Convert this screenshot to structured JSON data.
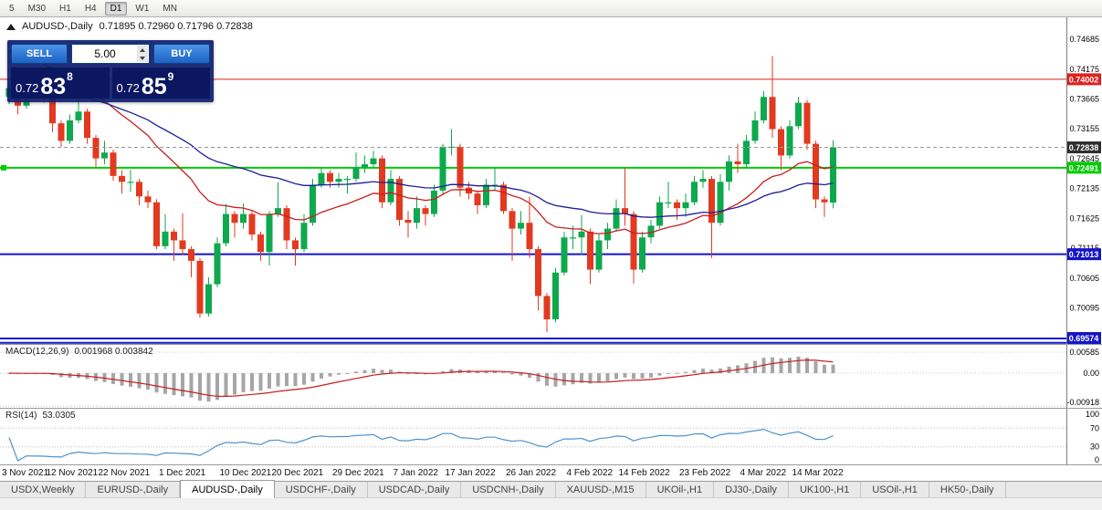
{
  "toolbar": {
    "timeframes": [
      "5",
      "M30",
      "H1",
      "H4",
      "D1",
      "W1",
      "MN"
    ],
    "active": "D1"
  },
  "chart": {
    "symbol_label": "AUDUSD-,Daily",
    "ohlc_text": "0.71895 0.72960 0.71796 0.72838",
    "colors": {
      "up": "#0ea94e",
      "down": "#e23a20",
      "bg": "#ffffff"
    },
    "price_axis": {
      "top_price": 0.7506,
      "bottom_price": 0.6948,
      "labels": [
        "0.74685",
        "0.74175",
        "0.73665",
        "0.73155",
        "0.72645",
        "0.72135",
        "0.71625",
        "0.71115",
        "0.70605",
        "0.70095",
        "0.69585"
      ]
    },
    "mas": [
      {
        "period": 20,
        "color": "#c81e1e",
        "seed": 0.7455
      },
      {
        "period": 45,
        "color": "#1e1e96",
        "seed": 0.738
      }
    ],
    "hlines": [
      {
        "price": 0.74002,
        "color": "#e02020",
        "width": 1,
        "tag": "0.74002"
      },
      {
        "price": 0.72491,
        "color": "#00cc00",
        "width": 2,
        "tag": "0.72491"
      },
      {
        "price": 0.71013,
        "color": "#1414c8",
        "width": 2,
        "tag": "0.71013"
      },
      {
        "price": 0.69574,
        "color": "#1414c8",
        "width": 2,
        "tag": "0.69574"
      },
      {
        "price": 0.695,
        "color": "#1414c8",
        "width": 2,
        "tag": null
      }
    ],
    "bid": {
      "price": 0.72838,
      "tag": "0.72838",
      "color": "#2e2e2e"
    },
    "candles": [
      [
        0.737,
        0.7395,
        0.7358,
        0.7385
      ],
      [
        0.7385,
        0.739,
        0.734,
        0.7355
      ],
      [
        0.7355,
        0.7408,
        0.735,
        0.74
      ],
      [
        0.74,
        0.7405,
        0.7375,
        0.739
      ],
      [
        0.739,
        0.7398,
        0.736,
        0.738
      ],
      [
        0.738,
        0.7385,
        0.731,
        0.7325
      ],
      [
        0.7325,
        0.733,
        0.7285,
        0.7295
      ],
      [
        0.7295,
        0.734,
        0.729,
        0.733
      ],
      [
        0.733,
        0.737,
        0.7325,
        0.7345
      ],
      [
        0.7345,
        0.735,
        0.729,
        0.73
      ],
      [
        0.73,
        0.7305,
        0.725,
        0.7265
      ],
      [
        0.7265,
        0.7295,
        0.7255,
        0.7275
      ],
      [
        0.7275,
        0.728,
        0.7227,
        0.7235
      ],
      [
        0.7235,
        0.7245,
        0.7205,
        0.7225
      ],
      [
        0.7225,
        0.7245,
        0.7208,
        0.7225
      ],
      [
        0.7225,
        0.723,
        0.7185,
        0.72
      ],
      [
        0.72,
        0.721,
        0.718,
        0.719
      ],
      [
        0.719,
        0.7195,
        0.711,
        0.7115
      ],
      [
        0.7115,
        0.717,
        0.711,
        0.714
      ],
      [
        0.714,
        0.7145,
        0.709,
        0.7125
      ],
      [
        0.7125,
        0.7171,
        0.71,
        0.711
      ],
      [
        0.711,
        0.7115,
        0.7062,
        0.709
      ],
      [
        0.709,
        0.7095,
        0.6993,
        0.7
      ],
      [
        0.7,
        0.7062,
        0.6995,
        0.705
      ],
      [
        0.705,
        0.713,
        0.7045,
        0.712
      ],
      [
        0.712,
        0.7187,
        0.7115,
        0.717
      ],
      [
        0.717,
        0.7175,
        0.713,
        0.7155
      ],
      [
        0.7155,
        0.7188,
        0.7145,
        0.717
      ],
      [
        0.717,
        0.7175,
        0.7125,
        0.7135
      ],
      [
        0.7135,
        0.714,
        0.709,
        0.7105
      ],
      [
        0.7105,
        0.7175,
        0.7082,
        0.717
      ],
      [
        0.717,
        0.7224,
        0.7165,
        0.718
      ],
      [
        0.718,
        0.7185,
        0.711,
        0.7125
      ],
      [
        0.7125,
        0.713,
        0.7082,
        0.711
      ],
      [
        0.711,
        0.717,
        0.7105,
        0.7155
      ],
      [
        0.7155,
        0.723,
        0.715,
        0.722
      ],
      [
        0.722,
        0.725,
        0.7215,
        0.724
      ],
      [
        0.724,
        0.7245,
        0.7215,
        0.7225
      ],
      [
        0.7225,
        0.724,
        0.7215,
        0.723
      ],
      [
        0.723,
        0.7235,
        0.7205,
        0.723
      ],
      [
        0.723,
        0.7275,
        0.7225,
        0.725
      ],
      [
        0.725,
        0.727,
        0.724,
        0.7255
      ],
      [
        0.7255,
        0.7278,
        0.725,
        0.7265
      ],
      [
        0.7265,
        0.727,
        0.718,
        0.719
      ],
      [
        0.719,
        0.7245,
        0.7185,
        0.723
      ],
      [
        0.723,
        0.7235,
        0.715,
        0.716
      ],
      [
        0.716,
        0.7175,
        0.713,
        0.7155
      ],
      [
        0.7155,
        0.72,
        0.7145,
        0.718
      ],
      [
        0.718,
        0.7185,
        0.715,
        0.717
      ],
      [
        0.717,
        0.722,
        0.7165,
        0.721
      ],
      [
        0.721,
        0.729,
        0.7205,
        0.7285
      ],
      [
        0.7285,
        0.7315,
        0.727,
        0.7285
      ],
      [
        0.7285,
        0.729,
        0.72,
        0.7215
      ],
      [
        0.7215,
        0.7225,
        0.7195,
        0.7205
      ],
      [
        0.7205,
        0.721,
        0.717,
        0.7185
      ],
      [
        0.7185,
        0.723,
        0.718,
        0.722
      ],
      [
        0.722,
        0.725,
        0.721,
        0.722
      ],
      [
        0.722,
        0.7225,
        0.717,
        0.7175
      ],
      [
        0.7175,
        0.718,
        0.709,
        0.7145
      ],
      [
        0.7145,
        0.7175,
        0.7135,
        0.7155
      ],
      [
        0.7155,
        0.72,
        0.7095,
        0.711
      ],
      [
        0.711,
        0.7115,
        0.7005,
        0.703
      ],
      [
        0.703,
        0.7035,
        0.6968,
        0.699
      ],
      [
        0.699,
        0.7078,
        0.6985,
        0.707
      ],
      [
        0.707,
        0.714,
        0.7065,
        0.713
      ],
      [
        0.713,
        0.715,
        0.711,
        0.713
      ],
      [
        0.713,
        0.7168,
        0.71,
        0.714
      ],
      [
        0.714,
        0.7145,
        0.705,
        0.7075
      ],
      [
        0.7075,
        0.7135,
        0.707,
        0.7125
      ],
      [
        0.7125,
        0.7155,
        0.711,
        0.7145
      ],
      [
        0.7145,
        0.7195,
        0.714,
        0.718
      ],
      [
        0.718,
        0.7249,
        0.715,
        0.717
      ],
      [
        0.717,
        0.7175,
        0.7051,
        0.7075
      ],
      [
        0.7075,
        0.714,
        0.707,
        0.713
      ],
      [
        0.713,
        0.716,
        0.712,
        0.715
      ],
      [
        0.715,
        0.72,
        0.7145,
        0.719
      ],
      [
        0.719,
        0.7225,
        0.718,
        0.719
      ],
      [
        0.719,
        0.7195,
        0.716,
        0.718
      ],
      [
        0.718,
        0.7205,
        0.7165,
        0.719
      ],
      [
        0.719,
        0.7235,
        0.7185,
        0.7225
      ],
      [
        0.7225,
        0.7245,
        0.7215,
        0.723
      ],
      [
        0.723,
        0.7235,
        0.7095,
        0.7155
      ],
      [
        0.7155,
        0.7238,
        0.715,
        0.7225
      ],
      [
        0.7225,
        0.727,
        0.721,
        0.726
      ],
      [
        0.726,
        0.729,
        0.724,
        0.7255
      ],
      [
        0.7255,
        0.7305,
        0.725,
        0.7295
      ],
      [
        0.7295,
        0.7345,
        0.729,
        0.733
      ],
      [
        0.733,
        0.738,
        0.7325,
        0.737
      ],
      [
        0.737,
        0.744,
        0.73,
        0.7315
      ],
      [
        0.7315,
        0.732,
        0.7245,
        0.727
      ],
      [
        0.727,
        0.733,
        0.7265,
        0.732
      ],
      [
        0.732,
        0.737,
        0.7315,
        0.736
      ],
      [
        0.736,
        0.7365,
        0.728,
        0.729
      ],
      [
        0.729,
        0.7295,
        0.718,
        0.7195
      ],
      [
        0.7195,
        0.72,
        0.7165,
        0.719
      ],
      [
        0.71895,
        0.7296,
        0.71796,
        0.72838
      ]
    ],
    "dates": [
      {
        "label": "3 Nov 2021",
        "index": 0
      },
      {
        "label": "12 Nov 2021",
        "index": 7
      },
      {
        "label": "22 Nov 2021",
        "index": 13
      },
      {
        "label": "1 Dec 2021",
        "index": 20
      },
      {
        "label": "10 Dec 2021",
        "index": 27
      },
      {
        "label": "20 Dec 2021",
        "index": 33
      },
      {
        "label": "29 Dec 2021",
        "index": 40
      },
      {
        "label": "7 Jan 2022",
        "index": 47
      },
      {
        "label": "17 Jan 2022",
        "index": 53
      },
      {
        "label": "26 Jan 2022",
        "index": 60
      },
      {
        "label": "4 Feb 2022",
        "index": 67
      },
      {
        "label": "14 Feb 2022",
        "index": 73
      },
      {
        "label": "23 Feb 2022",
        "index": 80
      },
      {
        "label": "4 Mar 2022",
        "index": 87
      },
      {
        "label": "14 Mar 2022",
        "index": 93
      }
    ]
  },
  "trade_panel": {
    "sell_label": "SELL",
    "buy_label": "BUY",
    "lot": "5.00",
    "sell_price": {
      "prefix": "0.72",
      "big": "83",
      "sup": "8"
    },
    "buy_price": {
      "prefix": "0.72",
      "big": "85",
      "sup": "9"
    }
  },
  "macd": {
    "label": "MACD(12,26,9)",
    "values_text": "0.001968 0.003842",
    "params": {
      "fast": 12,
      "slow": 26,
      "signal": 9
    },
    "colors": {
      "hist": "#a6a6a6",
      "signal": "#c81e1e"
    },
    "axis": [
      {
        "label": "0.00585",
        "value": 0.00585
      },
      {
        "label": "0.00",
        "value": 0
      },
      {
        "label": "-0.00918",
        "value": -0.00918
      }
    ]
  },
  "rsi": {
    "label": "RSI(14)",
    "value": "53.0305",
    "period": 14,
    "color": "#4f93cc",
    "levels": [
      70,
      30
    ],
    "axis": [
      {
        "label": "100",
        "value": 100
      },
      {
        "label": "70",
        "value": 70
      },
      {
        "label": "30",
        "value": 30
      },
      {
        "label": "0",
        "value": 0
      }
    ]
  },
  "tabs": {
    "active": "AUDUSD-,Daily",
    "items": [
      "USDX,Weekly",
      "EURUSD-,Daily",
      "AUDUSD-,Daily",
      "USDCHF-,Daily",
      "USDCAD-,Daily",
      "USDCNH-,Daily",
      "XAUUSD-,M15",
      "UKOil-,H1",
      "DJ30-,Daily",
      "UK100-,H1",
      "USOil-,H1",
      "HK50-,Daily"
    ]
  }
}
